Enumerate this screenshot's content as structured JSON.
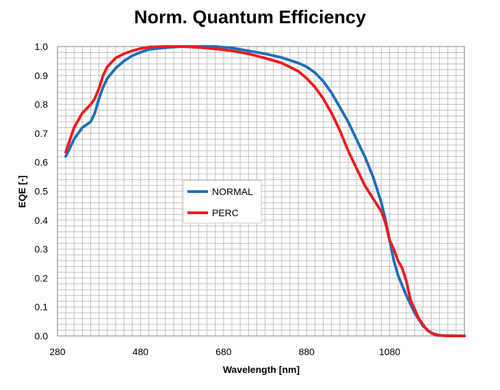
{
  "chart_data": {
    "type": "line",
    "title": "Norm. Quantum Efficiency",
    "xlabel": "Wavelength [nm]",
    "ylabel": "EQE [-]",
    "xlim": [
      280,
      1260
    ],
    "ylim": [
      0,
      1.0
    ],
    "xticks": [
      "280",
      "480",
      "680",
      "880",
      "1080"
    ],
    "yticks": [
      "0.0",
      "0.1",
      "0.2",
      "0.3",
      "0.4",
      "0.5",
      "0.6",
      "0.7",
      "0.8",
      "0.9",
      "1.0"
    ],
    "grid": true,
    "legend_position": "center",
    "series": [
      {
        "name": "NORMAL",
        "color": "#1f6fbd",
        "points": [
          [
            300,
            0.62
          ],
          [
            320,
            0.68
          ],
          [
            340,
            0.72
          ],
          [
            360,
            0.74
          ],
          [
            370,
            0.77
          ],
          [
            380,
            0.82
          ],
          [
            390,
            0.86
          ],
          [
            400,
            0.89
          ],
          [
            420,
            0.925
          ],
          [
            440,
            0.95
          ],
          [
            460,
            0.968
          ],
          [
            480,
            0.98
          ],
          [
            500,
            0.99
          ],
          [
            540,
            0.996
          ],
          [
            580,
            1.0
          ],
          [
            620,
            1.0
          ],
          [
            660,
            1.0
          ],
          [
            700,
            0.995
          ],
          [
            740,
            0.985
          ],
          [
            780,
            0.975
          ],
          [
            820,
            0.962
          ],
          [
            860,
            0.943
          ],
          [
            880,
            0.93
          ],
          [
            900,
            0.91
          ],
          [
            920,
            0.88
          ],
          [
            940,
            0.84
          ],
          [
            960,
            0.79
          ],
          [
            980,
            0.74
          ],
          [
            1000,
            0.68
          ],
          [
            1020,
            0.62
          ],
          [
            1040,
            0.55
          ],
          [
            1060,
            0.46
          ],
          [
            1070,
            0.4
          ],
          [
            1080,
            0.33
          ],
          [
            1090,
            0.26
          ],
          [
            1100,
            0.21
          ],
          [
            1120,
            0.14
          ],
          [
            1140,
            0.08
          ],
          [
            1160,
            0.035
          ],
          [
            1180,
            0.01
          ],
          [
            1200,
            0.002
          ],
          [
            1260,
            0.0
          ]
        ]
      },
      {
        "name": "PERC",
        "color": "#ee1c1c",
        "points": [
          [
            300,
            0.635
          ],
          [
            320,
            0.72
          ],
          [
            340,
            0.77
          ],
          [
            360,
            0.8
          ],
          [
            370,
            0.82
          ],
          [
            380,
            0.855
          ],
          [
            390,
            0.9
          ],
          [
            400,
            0.93
          ],
          [
            420,
            0.96
          ],
          [
            440,
            0.975
          ],
          [
            460,
            0.985
          ],
          [
            480,
            0.993
          ],
          [
            500,
            0.998
          ],
          [
            540,
            1.0
          ],
          [
            580,
            1.0
          ],
          [
            620,
            0.997
          ],
          [
            660,
            0.992
          ],
          [
            700,
            0.985
          ],
          [
            740,
            0.975
          ],
          [
            780,
            0.96
          ],
          [
            820,
            0.943
          ],
          [
            860,
            0.915
          ],
          [
            880,
            0.89
          ],
          [
            900,
            0.86
          ],
          [
            920,
            0.82
          ],
          [
            940,
            0.77
          ],
          [
            960,
            0.71
          ],
          [
            980,
            0.64
          ],
          [
            1000,
            0.58
          ],
          [
            1020,
            0.52
          ],
          [
            1040,
            0.475
          ],
          [
            1060,
            0.43
          ],
          [
            1070,
            0.39
          ],
          [
            1080,
            0.33
          ],
          [
            1090,
            0.3
          ],
          [
            1100,
            0.26
          ],
          [
            1110,
            0.235
          ],
          [
            1120,
            0.19
          ],
          [
            1130,
            0.125
          ],
          [
            1150,
            0.06
          ],
          [
            1170,
            0.02
          ],
          [
            1190,
            0.003
          ],
          [
            1220,
            0.0
          ],
          [
            1260,
            0.0
          ]
        ]
      }
    ]
  }
}
